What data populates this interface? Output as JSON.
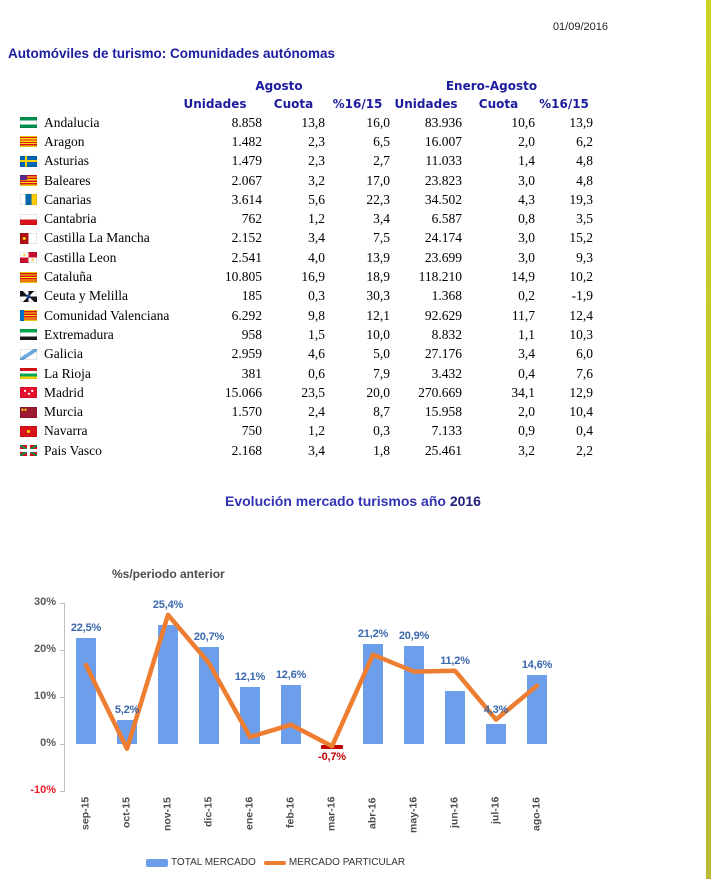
{
  "page": {
    "date": "01/09/2016",
    "section_title": "Automóviles de turismo: Comunidades autónomas"
  },
  "colors": {
    "title_navy": "#1c1c9e",
    "chart_title_blue": "#3232b4",
    "chart_title_year": "#1f1f7a",
    "bar": "#6d9eeb",
    "line": "#ed7d31",
    "negative": "#c00000",
    "bar_label": "#3a67ad",
    "negative_tick": "#ee1c25",
    "edge_stripe": "#c6c62c"
  },
  "table": {
    "group_headers": [
      {
        "label": "Agosto"
      },
      {
        "label": "Enero-Agosto"
      }
    ],
    "sub_headers": [
      "Unidades",
      "Cuota",
      "%16/15",
      "Unidades",
      "Cuota",
      "%16/15"
    ],
    "rows": [
      {
        "flag": "andalucia",
        "region": "Andalucia",
        "cells": [
          "8.858",
          "13,8",
          "16,0",
          "83.936",
          "10,6",
          "13,9"
        ]
      },
      {
        "flag": "aragon",
        "region": "Aragon",
        "cells": [
          "1.482",
          "2,3",
          "6,5",
          "16.007",
          "2,0",
          "6,2"
        ]
      },
      {
        "flag": "asturias",
        "region": "Asturias",
        "cells": [
          "1.479",
          "2,3",
          "2,7",
          "11.033",
          "1,4",
          "4,8"
        ]
      },
      {
        "flag": "baleares",
        "region": "Baleares",
        "cells": [
          "2.067",
          "3,2",
          "17,0",
          "23.823",
          "3,0",
          "4,8"
        ]
      },
      {
        "flag": "canarias",
        "region": "Canarias",
        "cells": [
          "3.614",
          "5,6",
          "22,3",
          "34.502",
          "4,3",
          "19,3"
        ]
      },
      {
        "flag": "cantabria",
        "region": "Cantabria",
        "cells": [
          "762",
          "1,2",
          "3,4",
          "6.587",
          "0,8",
          "3,5"
        ]
      },
      {
        "flag": "castilla-la-mancha",
        "region": "Castilla La Mancha",
        "cells": [
          "2.152",
          "3,4",
          "7,5",
          "24.174",
          "3,0",
          "15,2"
        ]
      },
      {
        "flag": "castilla-leon",
        "region": "Castilla Leon",
        "cells": [
          "2.541",
          "4,0",
          "13,9",
          "23.699",
          "3,0",
          "9,3"
        ]
      },
      {
        "flag": "cataluna",
        "region": "Cataluña",
        "cells": [
          "10.805",
          "16,9",
          "18,9",
          "118.210",
          "14,9",
          "10,2"
        ]
      },
      {
        "flag": "ceuta-melilla",
        "region": "Ceuta y Melilla",
        "cells": [
          "185",
          "0,3",
          "30,3",
          "1.368",
          "0,2",
          "-1,9"
        ]
      },
      {
        "flag": "valenciana",
        "region": "Comunidad Valenciana",
        "cells": [
          "6.292",
          "9,8",
          "12,1",
          "92.629",
          "11,7",
          "12,4"
        ]
      },
      {
        "flag": "extremadura",
        "region": "Extremadura",
        "cells": [
          "958",
          "1,5",
          "10,0",
          "8.832",
          "1,1",
          "10,3"
        ]
      },
      {
        "flag": "galicia",
        "region": "Galicia",
        "cells": [
          "2.959",
          "4,6",
          "5,0",
          "27.176",
          "3,4",
          "6,0"
        ]
      },
      {
        "flag": "la-rioja",
        "region": "La Rioja",
        "cells": [
          "381",
          "0,6",
          "7,9",
          "3.432",
          "0,4",
          "7,6"
        ]
      },
      {
        "flag": "madrid",
        "region": "Madrid",
        "cells": [
          "15.066",
          "23,5",
          "20,0",
          "270.669",
          "34,1",
          "12,9"
        ]
      },
      {
        "flag": "murcia",
        "region": "Murcia",
        "cells": [
          "1.570",
          "2,4",
          "8,7",
          "15.958",
          "2,0",
          "10,4"
        ]
      },
      {
        "flag": "navarra",
        "region": "Navarra",
        "cells": [
          "750",
          "1,2",
          "0,3",
          "7.133",
          "0,9",
          "0,4"
        ]
      },
      {
        "flag": "pais-vasco",
        "region": "Pais Vasco",
        "cells": [
          "2.168",
          "3,4",
          "1,8",
          "25.461",
          "3,2",
          "2,2"
        ]
      }
    ]
  },
  "chart": {
    "title_main": "Evolución mercado turismos año",
    "title_year": "2016",
    "subtitle": "%s/periodo anterior"
  },
  "chart_data": {
    "type": "bar",
    "subtype": "bar+line combo",
    "title": "Evolución mercado turismos año 2016",
    "xlabel": "",
    "ylabel": "%s/periodo anterior",
    "ylim": [
      -10,
      30
    ],
    "grid": false,
    "legend_position": "bottom",
    "categories": [
      "sep-15",
      "oct-15",
      "nov-15",
      "dic-15",
      "ene-16",
      "feb-16",
      "mar-16",
      "abr-16",
      "may-16",
      "jun-16",
      "jul-16",
      "ago-16"
    ],
    "yticks": [
      {
        "label": "30%",
        "value": 30
      },
      {
        "label": "20%",
        "value": 20
      },
      {
        "label": "10%",
        "value": 10
      },
      {
        "label": "0%",
        "value": 0
      },
      {
        "label": "-10%",
        "value": -10,
        "negative": true
      }
    ],
    "series": [
      {
        "name": "TOTAL MERCADO",
        "type": "bar",
        "color": "#6d9eeb",
        "values": [
          22.5,
          5.2,
          25.4,
          20.7,
          12.1,
          12.6,
          -0.7,
          21.2,
          20.9,
          11.2,
          4.3,
          14.6
        ],
        "labels": [
          "22,5%",
          "5,2%",
          "25,4%",
          "20,7%",
          "12,1%",
          "12,6%",
          "-0,7%",
          "21,2%",
          "20,9%",
          "11,2%",
          "4,3%",
          "14,6%"
        ]
      },
      {
        "name": "MERCADO PARTICULAR",
        "type": "line",
        "color": "#ed7d31",
        "values": [
          16.8,
          -1.0,
          27.5,
          17.2,
          1.5,
          4.1,
          -0.5,
          19.0,
          15.4,
          15.6,
          5.2,
          12.4
        ]
      }
    ]
  }
}
